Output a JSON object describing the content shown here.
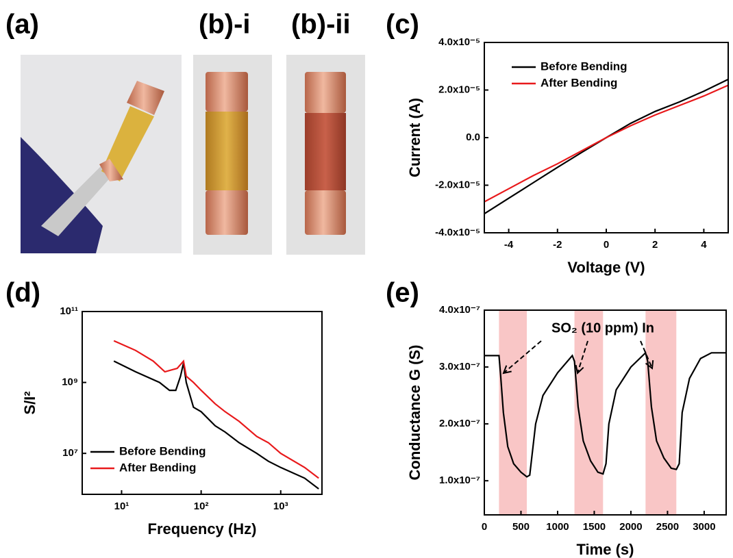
{
  "panel_labels": [
    "(a)",
    "(b)-i",
    "(b)-ii",
    "(c)",
    "(d)",
    "(e)"
  ],
  "chart_data": [
    {
      "type": "line",
      "x_label": "Voltage (V)",
      "y_label": "Current (A)",
      "xlim": [
        -5,
        5
      ],
      "ylim": [
        -4e-05,
        4e-05
      ],
      "xticks": [
        -4,
        -2,
        0,
        2,
        4
      ],
      "yticks": [
        {
          "value": -4e-05,
          "label": "-4.0x10⁻⁵"
        },
        {
          "value": -2e-05,
          "label": "-2.0x10⁻⁵"
        },
        {
          "value": 0,
          "label": "0.0"
        },
        {
          "value": 2e-05,
          "label": "2.0x10⁻⁵"
        },
        {
          "value": 4e-05,
          "label": "4.0x10⁻⁵"
        }
      ],
      "legend": "upper-left",
      "series": [
        {
          "name": "Before Bending",
          "color": "#000000",
          "x": [
            -5,
            -4,
            -3,
            -2,
            -1,
            0,
            1,
            2,
            3,
            4,
            5
          ],
          "values": [
            -3.2e-05,
            -2.55e-05,
            -1.9e-05,
            -1.25e-05,
            -6.2e-06,
            0,
            6e-06,
            1.1e-05,
            1.5e-05,
            1.95e-05,
            2.45e-05
          ]
        },
        {
          "name": "After Bending",
          "color": "#e8191b",
          "x": [
            -5,
            -4,
            -3,
            -2,
            -1,
            0,
            1,
            2,
            3,
            4,
            5
          ],
          "values": [
            -2.7e-05,
            -2.15e-05,
            -1.6e-05,
            -1.1e-05,
            -5.5e-06,
            0,
            5e-06,
            9.5e-06,
            1.35e-05,
            1.75e-05,
            2.2e-05
          ]
        }
      ]
    },
    {
      "type": "line",
      "x_label": "Frequency (Hz)",
      "y_label": "S/I²",
      "log_x": true,
      "log_y": true,
      "xlim": [
        3.2,
        3300
      ],
      "ylim": [
        700000,
        100000000000
      ],
      "xticks": [
        {
          "value": 10,
          "label": "10¹"
        },
        {
          "value": 100,
          "label": "10²"
        },
        {
          "value": 1000,
          "label": "10³"
        }
      ],
      "yticks": [
        {
          "value": 10000000,
          "label": "10⁷"
        },
        {
          "value": 1000000000,
          "label": "10⁹"
        },
        {
          "value": 100000000000,
          "label": "10¹¹"
        }
      ],
      "legend": "lower-left",
      "series": [
        {
          "name": "Before Bending",
          "color": "#000000",
          "x": [
            8,
            15,
            30,
            40,
            48,
            55,
            60,
            65,
            80,
            100,
            150,
            200,
            300,
            500,
            700,
            1000,
            2000,
            3000
          ],
          "values": [
            4000000000,
            2000000000,
            1000000000,
            600000000,
            600000000,
            1500000000,
            3500000000,
            1000000000,
            200000000,
            150000000,
            60000000,
            40000000,
            20000000,
            10000000,
            6000000,
            4000000,
            2000000,
            1000000
          ]
        },
        {
          "name": "After Bending",
          "color": "#e8191b",
          "x": [
            8,
            15,
            25,
            35,
            50,
            60,
            65,
            80,
            100,
            150,
            200,
            300,
            500,
            700,
            1000,
            2000,
            3000
          ],
          "values": [
            15000000000,
            8000000000,
            4000000000,
            2000000000,
            2500000000,
            4000000000,
            1500000000,
            1000000000,
            600000000,
            250000000,
            150000000,
            80000000,
            30000000,
            20000000,
            10000000,
            4000000,
            2000000
          ]
        }
      ]
    },
    {
      "type": "line",
      "x_label": "Time (s)",
      "y_label": "Conductance G (S)",
      "xlim": [
        0,
        3300
      ],
      "ylim": [
        4e-08,
        4e-07
      ],
      "xticks": [
        0,
        500,
        1000,
        1500,
        2000,
        2500,
        3000
      ],
      "yticks": [
        {
          "value": 1e-07,
          "label": "1.0x10⁻⁷"
        },
        {
          "value": 2e-07,
          "label": "2.0x10⁻⁷"
        },
        {
          "value": 3e-07,
          "label": "3.0x10⁻⁷"
        },
        {
          "value": 4e-07,
          "label": "4.0x10⁻⁷"
        }
      ],
      "annotation": "SO₂ (10 ppm) In",
      "shaded_regions": [
        [
          200,
          580
        ],
        [
          1230,
          1620
        ],
        [
          2200,
          2620
        ]
      ],
      "shade_color": "#f9c6c6",
      "series": [
        {
          "color": "#000000",
          "x": [
            0,
            200,
            220,
            260,
            320,
            400,
            500,
            580,
            620,
            700,
            800,
            1000,
            1200,
            1230,
            1280,
            1350,
            1450,
            1550,
            1620,
            1660,
            1700,
            1800,
            2000,
            2200,
            2230,
            2280,
            2350,
            2450,
            2550,
            2620,
            2660,
            2700,
            2800,
            2950,
            3100,
            3300
          ],
          "values": [
            3.2e-07,
            3.2e-07,
            2.9e-07,
            2.2e-07,
            1.6e-07,
            1.3e-07,
            1.15e-07,
            1.07e-07,
            1.1e-07,
            2e-07,
            2.5e-07,
            2.9e-07,
            3.2e-07,
            3.1e-07,
            2.3e-07,
            1.7e-07,
            1.35e-07,
            1.15e-07,
            1.12e-07,
            1.3e-07,
            2e-07,
            2.6e-07,
            3e-07,
            3.25e-07,
            3.1e-07,
            2.3e-07,
            1.7e-07,
            1.4e-07,
            1.22e-07,
            1.2e-07,
            1.3e-07,
            2.2e-07,
            2.8e-07,
            3.15e-07,
            3.25e-07,
            3.25e-07
          ]
        }
      ]
    }
  ]
}
